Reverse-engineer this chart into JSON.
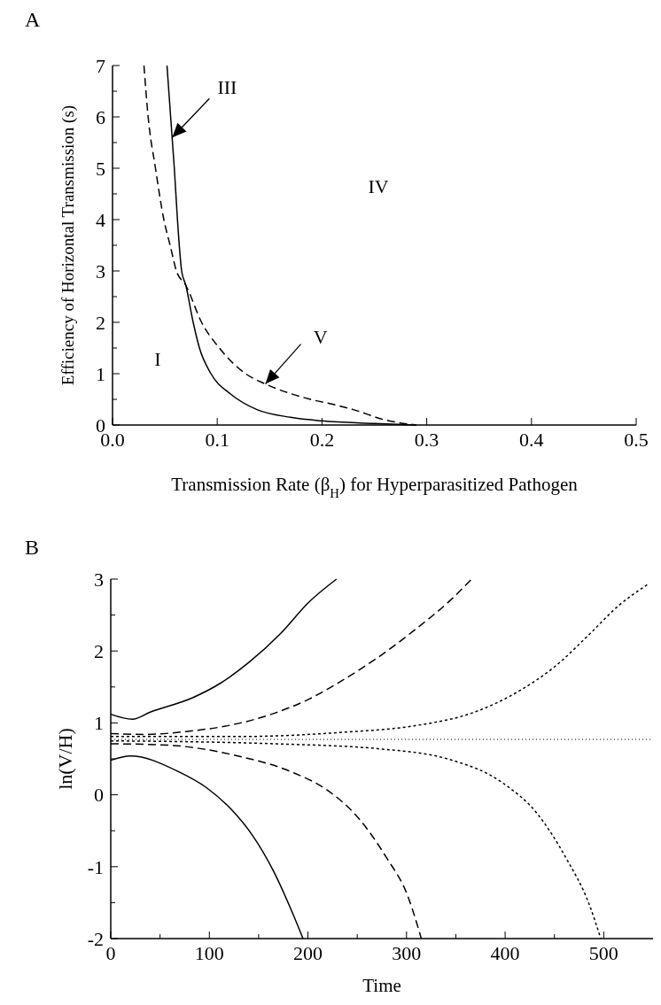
{
  "chart_data": [
    {
      "type": "line",
      "title": "A",
      "xlabel": "Transmission Rate (β$_{H}$) for Hyperparasitized Pathogen",
      "ylabel": "Efficiency of Horizontal Transmission (s)",
      "xlim": [
        0,
        0.5
      ],
      "ylim": [
        0,
        7
      ],
      "xticks": [
        {
          "value": 0,
          "label": "0.0"
        },
        0.1,
        0.2,
        0.3,
        0.4,
        0.5
      ],
      "yticks": [
        0,
        {
          "value": 0.5,
          "label": null
        },
        1,
        {
          "value": 1.5,
          "label": null
        },
        2,
        {
          "value": 2.5,
          "label": null
        },
        3,
        {
          "value": 3.5,
          "label": null
        },
        4,
        {
          "value": 4.5,
          "label": null
        },
        5,
        {
          "value": 5.5,
          "label": null
        },
        6,
        {
          "value": 6.5,
          "label": null
        },
        7
      ],
      "series": [
        {
          "color": "#000000",
          "line_style": "solid",
          "x": [
            0.052,
            0.059,
            0.062,
            0.066,
            0.07,
            0.077,
            0.083,
            0.094,
            0.113,
            0.138,
            0.17,
            0.2,
            0.25,
            0.29
          ],
          "values": [
            7,
            5,
            4,
            3,
            2.72,
            2,
            1.5,
            1,
            0.6,
            0.3,
            0.15,
            0.08,
            0.03,
            0
          ]
        },
        {
          "color": "#000000",
          "line_style": "dashed",
          "x": [
            0.03,
            0.034,
            0.041,
            0.049,
            0.055,
            0.061,
            0.07,
            0.085,
            0.102,
            0.127,
            0.146,
            0.189,
            0.211,
            0.23,
            0.26,
            0.29
          ],
          "values": [
            7,
            6,
            5,
            4,
            3.5,
            3,
            2.72,
            2,
            1.5,
            1,
            0.8,
            0.5,
            0.4,
            0.3,
            0.1,
            0
          ]
        }
      ],
      "annotations": [
        {
          "text": "III",
          "x": 0.057,
          "y": 5.6
        },
        "IV",
        "I",
        {
          "text": "V",
          "x": 0.146,
          "y": 0.8
        }
      ]
    },
    {
      "type": "line",
      "title": "B",
      "xlabel": "Time",
      "ylabel": "ln(V/H)",
      "xlim": [
        0,
        550
      ],
      "ylim": [
        -2,
        3
      ],
      "xticks": [
        0,
        {
          "value": 50,
          "label": null
        },
        100,
        {
          "value": 150,
          "label": null
        },
        200,
        {
          "value": 250,
          "label": null
        },
        300,
        {
          "value": 350,
          "label": null
        },
        400,
        {
          "value": 450,
          "label": null
        },
        500
      ],
      "yticks": [
        -2,
        {
          "value": -1.5,
          "label": null
        },
        -1,
        {
          "value": -0.5,
          "label": null
        },
        0,
        {
          "value": 0.5,
          "label": null
        },
        1,
        {
          "value": 1.5,
          "label": null
        },
        2,
        {
          "value": 2.5,
          "label": null
        },
        3
      ],
      "ref_lines": [
        {
          "axis": "y",
          "value": 0.77,
          "line_style": "dotted",
          "color": "#000000"
        }
      ],
      "series": [
        {
          "color": "#000000",
          "line_style": "solid",
          "x": [
            0,
            22,
            40,
            83,
            111,
            140,
            172,
            201,
            229
          ],
          "values": [
            1.12,
            1.05,
            1.15,
            1.35,
            1.55,
            1.84,
            2.24,
            2.68,
            3
          ]
        },
        {
          "color": "#000000",
          "line_style": "solid",
          "x": [
            0,
            20,
            69,
            97,
            122,
            144,
            165,
            183,
            195
          ],
          "values": [
            0.48,
            0.54,
            0.32,
            0.1,
            -0.2,
            -0.57,
            -1.06,
            -1.6,
            -2
          ]
        },
        {
          "color": "#000000",
          "line_style": "dashed",
          "x": [
            0,
            36,
            76,
            122,
            165,
            201,
            236,
            272,
            308,
            344,
            366
          ],
          "values": [
            0.85,
            0.84,
            0.88,
            0.97,
            1.13,
            1.33,
            1.6,
            1.92,
            2.29,
            2.7,
            3
          ]
        },
        {
          "color": "#000000",
          "line_style": "dashed",
          "x": [
            0,
            58,
            129,
            183,
            219,
            251,
            279,
            301,
            315
          ],
          "values": [
            0.71,
            0.69,
            0.54,
            0.32,
            0.07,
            -0.32,
            -0.86,
            -1.4,
            -2
          ]
        },
        {
          "color": "#000000",
          "line_style": "dotted",
          "x": [
            0,
            129,
            236,
            308,
            369,
            415,
            451,
            486,
            515,
            544
          ],
          "values": [
            0.81,
            0.81,
            0.87,
            0.96,
            1.15,
            1.45,
            1.79,
            2.24,
            2.63,
            2.92
          ]
        },
        {
          "color": "#000000",
          "line_style": "dotted",
          "x": [
            0,
            165,
            272,
            344,
            397,
            433,
            461,
            486,
            497
          ],
          "values": [
            0.75,
            0.71,
            0.64,
            0.49,
            0.17,
            -0.27,
            -0.86,
            -1.55,
            -2
          ]
        }
      ]
    }
  ]
}
